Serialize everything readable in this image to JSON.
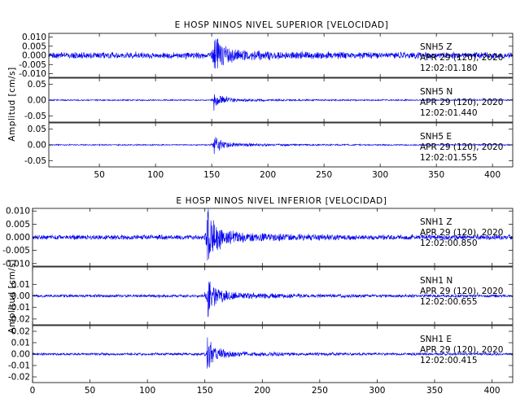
{
  "chart_data": [
    {
      "type": "line",
      "title": "E HOSP NINOS NIVEL SUPERIOR [VELOCIDAD]",
      "ylabel": "Amplitud [cm/s]",
      "xlabel": "",
      "xlim": [
        5,
        418
      ],
      "x_ticks": [
        50,
        100,
        150,
        200,
        250,
        300,
        350,
        400
      ],
      "grid": false,
      "line_color": "#0000ee",
      "series": [
        {
          "name": "SNH5   Z",
          "date": "APR 29 (120), 2020",
          "time": "12:02:01.180",
          "ylim": [
            -0.012,
            0.012
          ],
          "y_ticks": [
            {
              "v": 0.01,
              "label": "0.010"
            },
            {
              "v": 0.005,
              "label": "0.005"
            },
            {
              "v": 0.0,
              "label": "0.000"
            },
            {
              "v": -0.005,
              "label": "-0.005"
            },
            {
              "v": -0.01,
              "label": "-0.010"
            }
          ],
          "event_x": 152,
          "noise_amplitude": 0.0022,
          "peak_amplitude": 0.012
        },
        {
          "name": "SNH5   N",
          "date": "APR 29 (120), 2020",
          "time": "12:02:01.440",
          "ylim": [
            -0.07,
            0.07
          ],
          "y_ticks": [
            {
              "v": 0.05,
              "label": "0.05"
            },
            {
              "v": 0.0,
              "label": "0.00"
            },
            {
              "v": -0.05,
              "label": "-0.05"
            }
          ],
          "event_x": 152,
          "noise_amplitude": 0.0025,
          "peak_amplitude": 0.03
        },
        {
          "name": "SNH5   E",
          "date": "APR 29 (120), 2020",
          "time": "12:02:01.555",
          "ylim": [
            -0.07,
            0.07
          ],
          "y_ticks": [
            {
              "v": 0.05,
              "label": "0.05"
            },
            {
              "v": 0.0,
              "label": "0.00"
            },
            {
              "v": -0.05,
              "label": "-0.05"
            }
          ],
          "event_x": 152,
          "noise_amplitude": 0.0025,
          "peak_amplitude": 0.03
        }
      ]
    },
    {
      "type": "line",
      "title": "E HOSP NINOS NIVEL INFERIOR [VELOCIDAD]",
      "ylabel": "Amplitud [cm/s]",
      "xlabel": "",
      "xlim": [
        0,
        418
      ],
      "x_ticks": [
        0,
        50,
        100,
        150,
        200,
        250,
        300,
        350,
        400
      ],
      "grid": false,
      "line_color": "#0000ee",
      "series": [
        {
          "name": "SNH1   Z",
          "date": "APR 29 (120), 2020",
          "time": "12:02:00.850",
          "ylim": [
            -0.011,
            0.011
          ],
          "y_ticks": [
            {
              "v": 0.01,
              "label": "0.010"
            },
            {
              "v": 0.005,
              "label": "0.005"
            },
            {
              "v": 0.0,
              "label": "0.000"
            },
            {
              "v": -0.005,
              "label": "-0.005"
            },
            {
              "v": -0.01,
              "label": "-0.010"
            }
          ],
          "event_x": 152,
          "noise_amplitude": 0.0012,
          "peak_amplitude": 0.011
        },
        {
          "name": "SNH1   N",
          "date": "APR 29 (120), 2020",
          "time": "12:02:00.655",
          "ylim": [
            -0.025,
            0.025
          ],
          "y_ticks": [
            {
              "v": 0.01,
              "label": "0.01"
            },
            {
              "v": 0.0,
              "label": "0.00"
            },
            {
              "v": -0.01,
              "label": "-0.01"
            },
            {
              "v": -0.02,
              "label": "-0.02"
            }
          ],
          "event_x": 152,
          "noise_amplitude": 0.0016,
          "peak_amplitude": 0.018
        },
        {
          "name": "SNH1   E",
          "date": "APR 29 (120), 2020",
          "time": "12:02:00.415",
          "ylim": [
            -0.025,
            0.025
          ],
          "y_ticks": [
            {
              "v": 0.02,
              "label": "0.02"
            },
            {
              "v": 0.01,
              "label": "0.01"
            },
            {
              "v": 0.0,
              "label": "0.00"
            },
            {
              "v": -0.01,
              "label": "-0.01"
            },
            {
              "v": -0.02,
              "label": "-0.02"
            }
          ],
          "event_x": 152,
          "noise_amplitude": 0.0014,
          "peak_amplitude": 0.012
        }
      ]
    }
  ]
}
